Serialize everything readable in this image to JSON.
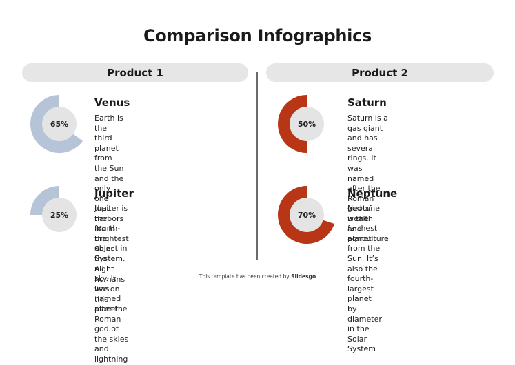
{
  "title": "Comparison Infographics",
  "columns": [
    {
      "header": "Product 1",
      "items": [
        {
          "name": "Venus",
          "percent_label": "65%",
          "value": 65,
          "color": "#b5c4d6",
          "description": "Earth is the third planet from\nthe Sun and the only one that\nharbors life in the Solar System.\nAll humans live on this planet"
        },
        {
          "name": "Jupiter",
          "percent_label": "25%",
          "value": 25,
          "color": "#b5c4d6",
          "description": "Jupiter is the fourth-brightest\nobject in the night sky. It was\nnamed after the Roman god of\nthe skies and lightning"
        }
      ]
    },
    {
      "header": "Product 2",
      "items": [
        {
          "name": "Saturn",
          "percent_label": "50%",
          "value": 50,
          "color": "#b83515",
          "description": "Saturn is a gas giant and has\nseveral rings. It was named\nafter the Roman god of wealth\nand agriculture"
        },
        {
          "name": "Neptune",
          "percent_label": "70%",
          "value": 70,
          "color": "#b83515",
          "description": "Neptune is the farthest planet\nfrom the Sun. It’s also the\nfourth-largest planet by\ndiameter in the Solar System"
        }
      ]
    }
  ],
  "inner_circle_color": "#e4e4e4",
  "footer": {
    "prefix": "This template has been created by ",
    "brand": "Slidesgo"
  }
}
